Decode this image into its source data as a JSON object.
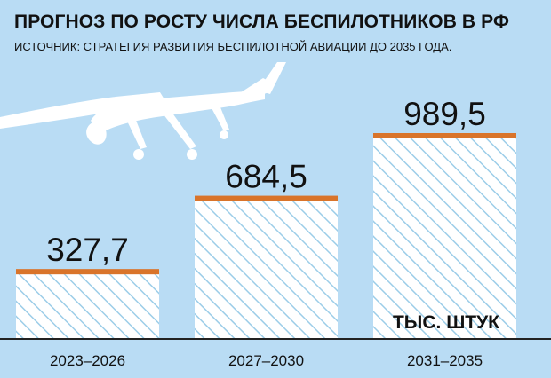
{
  "title": "ПРОГНОЗ ПО РОСТУ ЧИСЛА БЕСПИЛОТНИКОВ В РФ",
  "subtitle": "ИСТОЧНИК: СТРАТЕГИЯ РАЗВИТИЯ БЕСПИЛОТНОЙ АВИАЦИИ ДО 2035 ГОДА.",
  "unit_label": "ТЫС. ШТУК",
  "illustration": "drone-silhouette",
  "colors": {
    "background": "#b9dcf4",
    "bar_fill": "#ffffff",
    "bar_hatch": "#9ccde8",
    "bar_cap": "#d9742a",
    "text": "#111111",
    "baseline": "#222222"
  },
  "chart_data": {
    "type": "bar",
    "categories": [
      "2023–2026",
      "2027–2030",
      "2031–2035"
    ],
    "values": [
      327.7,
      684.5,
      989.5
    ],
    "value_labels": [
      "327,7",
      "684,5",
      "989,5"
    ],
    "title": "ПРОГНОЗ ПО РОСТУ ЧИСЛА БЕСПИЛОТНИКОВ В РФ",
    "xlabel": "",
    "ylabel": "",
    "unit": "ТЫС. ШТУК",
    "grid": false,
    "legend": "none"
  }
}
